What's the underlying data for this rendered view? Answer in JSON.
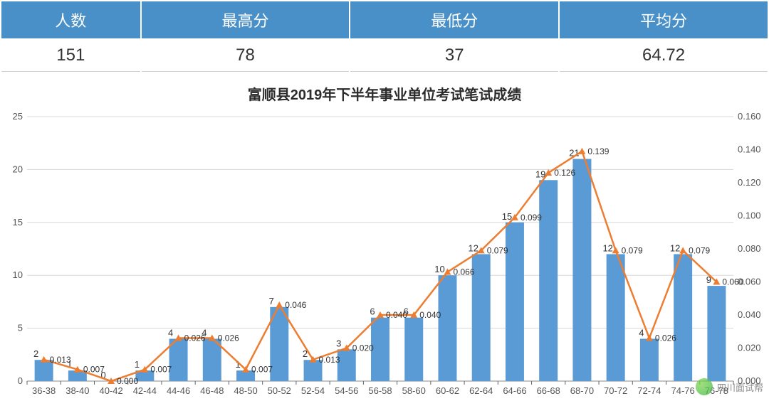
{
  "summary": {
    "headers": [
      "人数",
      "最高分",
      "最低分",
      "平均分"
    ],
    "values": [
      "151",
      "78",
      "37",
      "64.72"
    ]
  },
  "chart": {
    "title": "富顺县2019年下半年事业单位考试笔试成绩",
    "categories": [
      "36-38",
      "38-40",
      "40-42",
      "42-44",
      "44-46",
      "46-48",
      "48-50",
      "50-52",
      "52-54",
      "54-56",
      "56-58",
      "58-60",
      "60-62",
      "62-64",
      "64-66",
      "66-68",
      "68-70",
      "70-72",
      "72-74",
      "74-76",
      "76-78"
    ],
    "bar_values": [
      2,
      1,
      0,
      1,
      4,
      4,
      1,
      7,
      2,
      3,
      6,
      6,
      10,
      12,
      15,
      19,
      21,
      12,
      4,
      12,
      9
    ],
    "line_values": [
      0.013,
      0.007,
      0.0,
      0.007,
      0.026,
      0.026,
      0.007,
      0.046,
      0.013,
      0.02,
      0.04,
      0.04,
      0.066,
      0.079,
      0.099,
      0.126,
      0.139,
      0.079,
      0.026,
      0.079,
      0.06
    ],
    "left_axis": {
      "min": 0,
      "max": 25,
      "step": 5
    },
    "right_axis": {
      "min": 0.0,
      "max": 0.16,
      "step": 0.02,
      "decimals": 3
    },
    "bar_color": "#5b9bd5",
    "line_color": "#ed7d31",
    "marker_color": "#ed7d31",
    "grid_color": "#d8d8d8",
    "background": "#ffffff",
    "bar_width_ratio": 0.55
  },
  "watermark": {
    "text": "四川面试帮"
  }
}
